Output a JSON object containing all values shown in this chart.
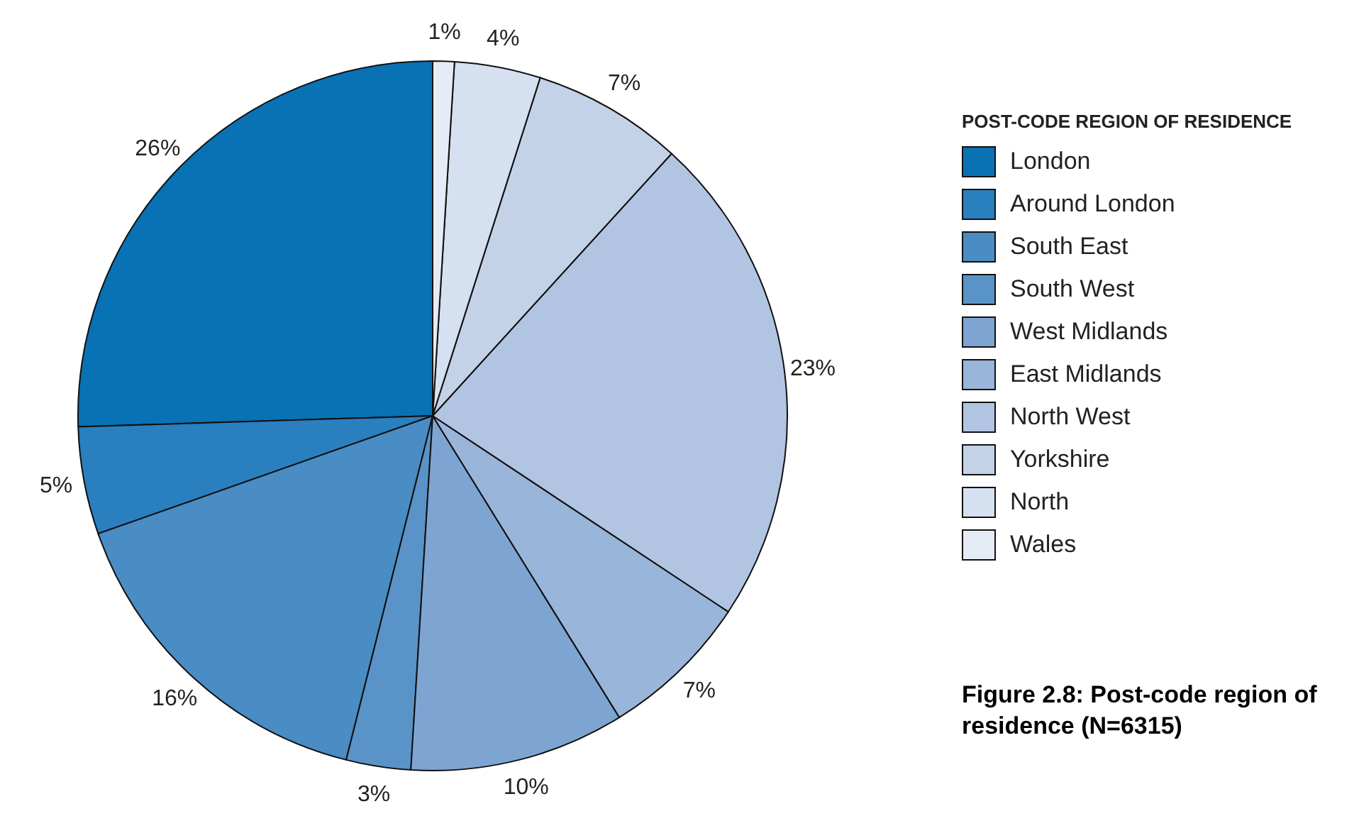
{
  "chart_data": {
    "type": "pie",
    "title": "Figure 2.8: Post-code region of residence (N=6315)",
    "legend_title": "POST-CODE REGION OF RESIDENCE",
    "categories": [
      "London",
      "Around London",
      "South East",
      "South West",
      "West Midlands",
      "East Midlands",
      "North West",
      "Yorkshire",
      "North",
      "Wales"
    ],
    "values": [
      26,
      5,
      16,
      3,
      10,
      7,
      23,
      7,
      4,
      1
    ],
    "value_labels": [
      "26%",
      "5%",
      "16%",
      "3%",
      "10%",
      "7%",
      "23%",
      "7%",
      "4%",
      "1%"
    ],
    "colors": [
      "#0872b4",
      "#2a7fbf",
      "#4a8cc4",
      "#5a93c8",
      "#7ea5d2",
      "#9ab5da",
      "#b1c5e2",
      "#c4d2e8",
      "#d5e0f0",
      "#e6ecf5"
    ],
    "legend": "right"
  }
}
